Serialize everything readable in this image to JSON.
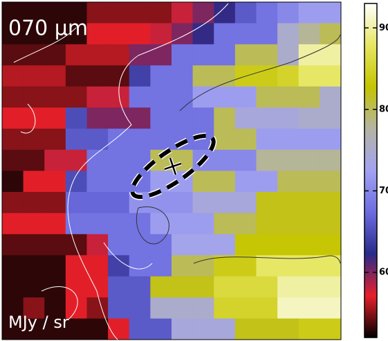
{
  "chart_data": {
    "type": "heatmap",
    "title": "070 μm",
    "colorbar_label": "MJy / sr",
    "colormap": [
      "#000000",
      "#e8202a",
      "#2a2a8a",
      "#6c6ce0",
      "#a2a2f2",
      "#b4b4a4",
      "#c4c400",
      "#e6e662",
      "#ffffff"
    ],
    "zlim": [
      52,
      93
    ],
    "zticks": [
      60,
      70,
      80,
      90
    ],
    "z": [
      [
        53,
        53,
        53,
        53,
        55,
        55,
        55,
        55,
        58,
        60,
        62,
        66,
        68,
        70,
        72,
        72
      ],
      [
        53,
        53,
        53,
        53,
        57,
        57,
        57,
        58,
        60,
        62,
        68,
        68,
        68,
        75,
        78,
        80
      ],
      [
        54,
        54,
        54,
        56,
        56,
        56,
        60,
        60,
        68,
        68,
        68,
        80,
        80,
        75,
        90,
        90
      ],
      [
        56,
        56,
        56,
        54,
        54,
        54,
        64,
        68,
        68,
        80,
        80,
        84,
        84,
        85,
        88,
        88
      ],
      [
        55,
        55,
        55,
        55,
        58,
        58,
        68,
        68,
        68,
        72,
        72,
        72,
        80,
        80,
        80,
        75
      ],
      [
        57,
        57,
        57,
        65,
        60,
        60,
        60,
        68,
        68,
        68,
        80,
        74,
        74,
        74,
        75,
        75
      ],
      [
        55,
        55,
        55,
        66,
        66,
        68,
        68,
        68,
        68,
        68,
        80,
        80,
        72,
        72,
        72,
        72
      ],
      [
        54,
        54,
        58,
        58,
        68,
        68,
        68,
        80,
        80,
        70,
        70,
        70,
        78,
        78,
        78,
        78
      ],
      [
        53,
        57,
        57,
        65,
        68,
        68,
        68,
        72,
        72,
        80,
        80,
        72,
        72,
        80,
        80,
        80
      ],
      [
        55,
        55,
        55,
        67,
        67,
        67,
        71,
        71,
        71,
        74,
        74,
        74,
        82,
        82,
        82,
        82
      ],
      [
        57,
        57,
        57,
        68,
        68,
        68,
        68,
        72,
        72,
        72,
        80,
        80,
        82,
        82,
        82,
        82
      ],
      [
        54,
        54,
        54,
        54,
        58,
        68,
        68,
        68,
        73,
        73,
        73,
        83,
        83,
        83,
        83,
        83
      ],
      [
        53,
        53,
        53,
        57,
        57,
        64,
        68,
        68,
        80,
        80,
        84,
        84,
        88,
        88,
        88,
        88
      ],
      [
        53,
        53,
        53,
        57,
        57,
        66,
        66,
        82,
        82,
        82,
        86,
        86,
        86,
        90,
        90,
        90
      ],
      [
        53,
        55,
        53,
        57,
        55,
        66,
        66,
        75,
        75,
        75,
        85,
        85,
        85,
        91,
        91,
        91
      ],
      [
        53,
        53,
        53,
        53,
        53,
        57,
        66,
        66,
        74,
        74,
        74,
        82,
        82,
        82,
        84,
        84
      ]
    ]
  }
}
